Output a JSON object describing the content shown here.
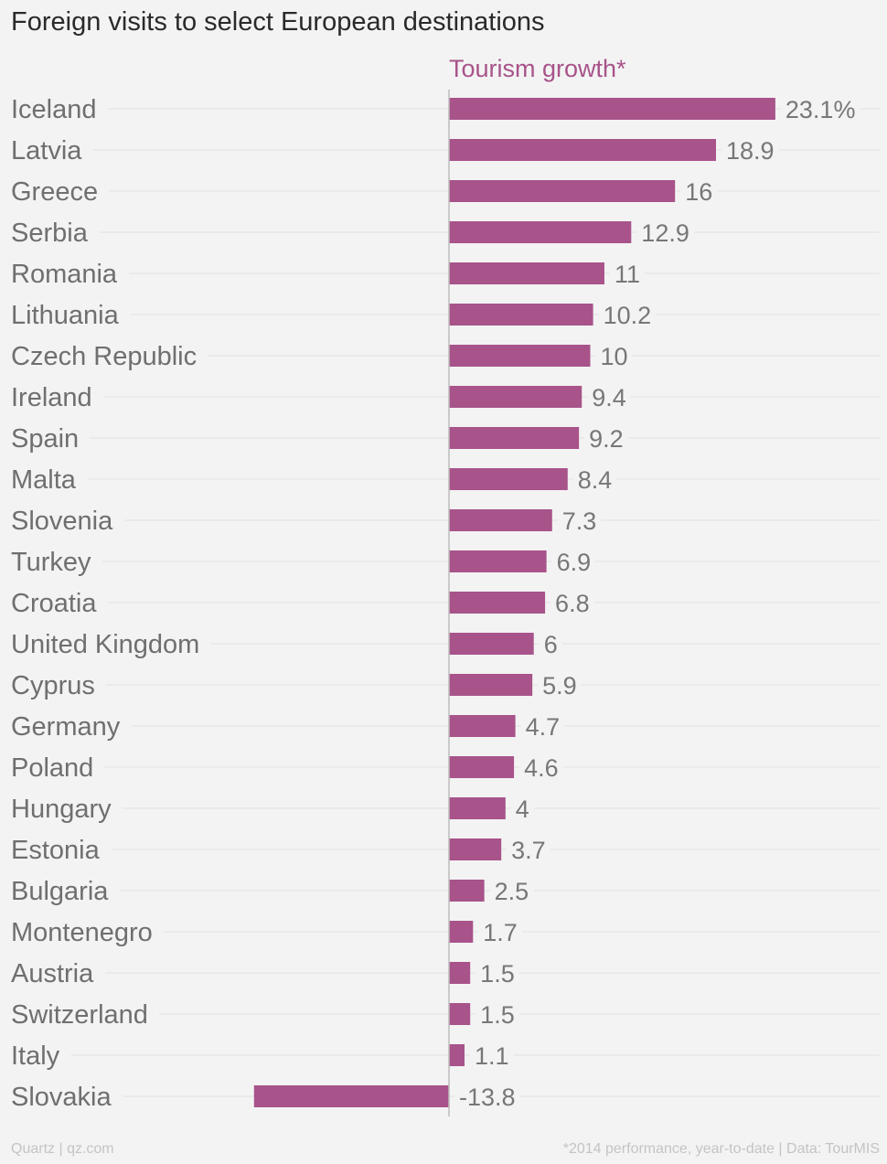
{
  "title": "Foreign visits to select European destinations",
  "footer": {
    "source_left": "Quartz | qz.com",
    "note_right": "*2014 performance, year-to-date | Data: TourMIS"
  },
  "chart_data": {
    "type": "bar",
    "orientation": "horizontal",
    "title": "Foreign visits to select European destinations",
    "series": [
      {
        "name": "Tourism growth*",
        "color": "#a8538a",
        "values": [
          23.1,
          18.9,
          16,
          12.9,
          11,
          10.2,
          10,
          9.4,
          9.2,
          8.4,
          7.3,
          6.9,
          6.8,
          6,
          5.9,
          4.7,
          4.6,
          4,
          3.7,
          2.5,
          1.7,
          1.5,
          1.5,
          1.1,
          -13.8
        ],
        "value_labels": [
          "23.1%",
          "18.9",
          "16",
          "12.9",
          "11",
          "10.2",
          "10",
          "9.4",
          "9.2",
          "8.4",
          "7.3",
          "6.9",
          "6.8",
          "6",
          "5.9",
          "4.7",
          "4.6",
          "4",
          "3.7",
          "2.5",
          "1.7",
          "1.5",
          "1.5",
          "1.1",
          "-13.8"
        ]
      }
    ],
    "categories": [
      "Iceland",
      "Latvia",
      "Greece",
      "Serbia",
      "Romania",
      "Lithuania",
      "Czech Republic",
      "Ireland",
      "Spain",
      "Malta",
      "Slovenia",
      "Turkey",
      "Croatia",
      "United Kingdom",
      "Cyprus",
      "Germany",
      "Poland",
      "Hungary",
      "Estonia",
      "Bulgaria",
      "Montenegro",
      "Austria",
      "Switzerland",
      "Italy",
      "Slovakia"
    ],
    "xlim": [
      -13.8,
      23.1
    ],
    "unit": "%",
    "grid": true,
    "zero_line": true
  }
}
